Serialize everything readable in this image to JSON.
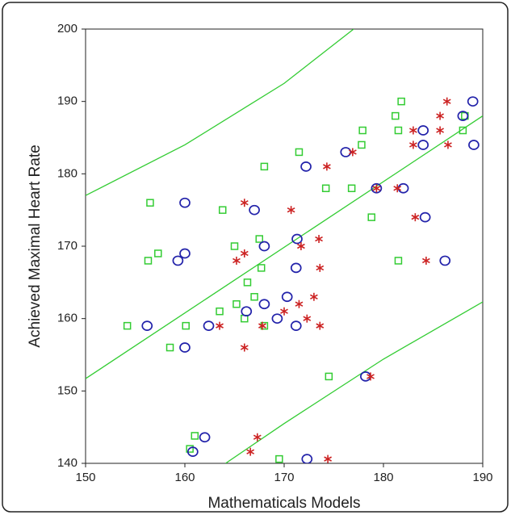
{
  "chart_data": {
    "type": "scatter",
    "xlabel": "Mathematicals Models",
    "ylabel": "Achieved Maximal Heart Rate",
    "xlim": [
      150,
      190
    ],
    "xticks": [
      150,
      160,
      170,
      180,
      190
    ],
    "ylim": [
      140,
      200
    ],
    "yticks": [
      140,
      150,
      160,
      170,
      180,
      190,
      200
    ],
    "series": [
      {
        "marker": "square",
        "color": "#33cc33",
        "x": [
          154.2,
          156.5,
          156.3,
          157.3,
          158.5,
          160.1,
          160.5,
          161,
          163.5,
          163.8,
          165,
          165.2,
          166,
          166.3,
          167,
          167.5,
          167.7,
          168,
          168,
          169.5,
          171.5,
          174.2,
          174.5,
          176.8,
          177.8,
          177.9,
          178.8,
          181.2,
          181.5,
          181.8,
          181.5,
          188,
          188.2
        ],
        "values": [
          159,
          176,
          168,
          169,
          156,
          159,
          142,
          143.8,
          161,
          175,
          170,
          162,
          160,
          165,
          163,
          171,
          167,
          181,
          159,
          140.6,
          183,
          178,
          152,
          178,
          184,
          186,
          174,
          188,
          186,
          190,
          168,
          186,
          188
        ]
      },
      {
        "marker": "circle",
        "color": "#2222aa",
        "x": [
          156.2,
          159.3,
          160,
          160,
          160,
          160.8,
          162,
          162.4,
          166.2,
          167,
          168,
          168,
          169.3,
          170.3,
          171.3,
          171.2,
          171.2,
          172.2,
          172.3,
          176.2,
          178.2,
          179.3,
          182,
          184,
          184,
          184.2,
          186.2,
          188,
          189,
          189.1
        ],
        "values": [
          159,
          168,
          169,
          176,
          156,
          141.6,
          143.6,
          159,
          161,
          175,
          170,
          162,
          160,
          163,
          171,
          167,
          159,
          181,
          140.6,
          183,
          152,
          178,
          178,
          186,
          184,
          174,
          168,
          188,
          190,
          184
        ]
      },
      {
        "marker": "asterisk",
        "color": "#cc2222",
        "x": [
          163.5,
          165.2,
          166,
          166,
          166,
          166.6,
          167.3,
          167.8,
          170,
          170.7,
          171.5,
          171.7,
          172.3,
          173,
          173.5,
          173.6,
          173.6,
          174.3,
          174.4,
          176.9,
          178.7,
          179.3,
          181.4,
          183,
          183,
          183.2,
          184.3,
          185.7,
          185.7,
          186.4,
          186.5
        ],
        "values": [
          159,
          168,
          176,
          169,
          156,
          141.6,
          143.6,
          159,
          161,
          175,
          162,
          170,
          160,
          163,
          171,
          167,
          159,
          181,
          140.6,
          183,
          152,
          178,
          178,
          186,
          184,
          174,
          168,
          188,
          186,
          190,
          184
        ]
      }
    ],
    "fit_lines": [
      {
        "color": "#33cc33",
        "x": [
          150,
          160,
          170,
          177
        ],
        "values": [
          177,
          184,
          192.5,
          200
        ]
      },
      {
        "color": "#33cc33",
        "x": [
          150,
          190
        ],
        "values": [
          151.7,
          188
        ]
      },
      {
        "color": "#33cc33",
        "x": [
          164.1,
          170,
          180,
          190
        ],
        "values": [
          140,
          145.5,
          154.4,
          162.3
        ]
      }
    ]
  }
}
